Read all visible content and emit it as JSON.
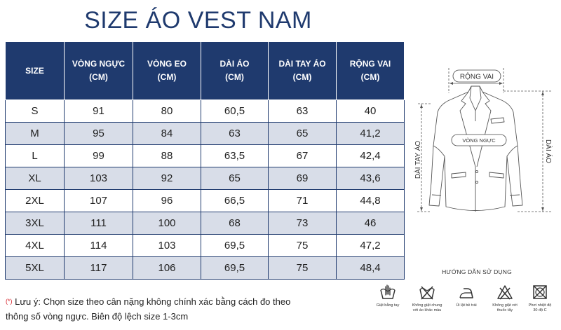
{
  "title": "SIZE ÁO VEST NAM",
  "table": {
    "headers": [
      {
        "line1": "SIZE",
        "line2": ""
      },
      {
        "line1": "VÒNG NGỰC",
        "line2": "(CM)"
      },
      {
        "line1": "VÒNG EO",
        "line2": "(CM)"
      },
      {
        "line1": "DÀI ÁO",
        "line2": "(CM)"
      },
      {
        "line1": "DÀI TAY ÁO",
        "line2": "(CM)"
      },
      {
        "line1": "RỘNG VAI",
        "line2": "(CM)"
      }
    ],
    "rows": [
      [
        "S",
        "91",
        "80",
        "60,5",
        "63",
        "40"
      ],
      [
        "M",
        "95",
        "84",
        "63",
        "65",
        "41,2"
      ],
      [
        "L",
        "99",
        "88",
        "63,5",
        "67",
        "42,4"
      ],
      [
        "XL",
        "103",
        "92",
        "65",
        "69",
        "43,6"
      ],
      [
        "2XL",
        "107",
        "96",
        "66,5",
        "71",
        "44,8"
      ],
      [
        "3XL",
        "111",
        "100",
        "68",
        "73",
        "46"
      ],
      [
        "4XL",
        "114",
        "103",
        "69,5",
        "75",
        "47,2"
      ],
      [
        "5XL",
        "117",
        "106",
        "69,5",
        "75",
        "48,4"
      ]
    ]
  },
  "diagram": {
    "shoulder_label": "RỘNG VAI",
    "chest_label": "VÒNG NGỰC",
    "sleeve_label": "DÀI TAY ÁO",
    "length_label": "DÀI ÁO"
  },
  "note": {
    "marker": "(*)",
    "line1": "Lưu ý: Chọn size theo cân nặng không chính xác bằng cách đo theo",
    "line2": "thông số vòng ngực. Biên độ lệch size 1-3cm"
  },
  "care_guide": {
    "title": "HƯỚNG DẪN SỬ DỤNG",
    "items": [
      {
        "icon": "hand-wash-icon",
        "line1": "Giặt bằng tay",
        "line2": ""
      },
      {
        "icon": "no-wash-together-icon",
        "line1": "Không giặt chung",
        "line2": "với áo khác màu"
      },
      {
        "icon": "iron-icon",
        "line1": "Ủi lật bề trái",
        "line2": ""
      },
      {
        "icon": "no-bleach-icon",
        "line1": "Không giặt với",
        "line2": "thuốc tẩy"
      },
      {
        "icon": "no-tumble-dry-icon",
        "line1": "Phơi nhiệt độ",
        "line2": "30 độ C"
      }
    ]
  }
}
